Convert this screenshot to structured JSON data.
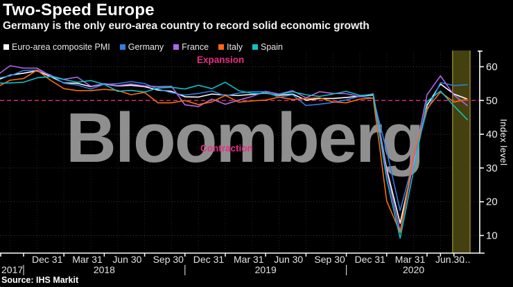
{
  "header": {
    "title": "Two-Speed Europe",
    "subtitle": "Germany is the only euro-area country to record solid economic growth"
  },
  "watermark": {
    "text": "Bloomberg"
  },
  "annotations": {
    "expansion": "Expansion",
    "contraction": "Contraction"
  },
  "footer": {
    "source": "Source: IHS Markit"
  },
  "y_axis": {
    "label": "Index level",
    "ticks": [
      60,
      50,
      40,
      30,
      20,
      10
    ]
  },
  "x_axis": {
    "quarter_ticks": [
      {
        "label": "Dec 31",
        "m": 0
      },
      {
        "label": "Mar 31",
        "m": 3
      },
      {
        "label": "Jun 30",
        "m": 6
      },
      {
        "label": "Sep 30",
        "m": 9
      },
      {
        "label": "Dec 31",
        "m": 12
      },
      {
        "label": "Mar 31",
        "m": 15
      },
      {
        "label": "Jun 30",
        "m": 18
      },
      {
        "label": "Sep 30",
        "m": 21
      },
      {
        "label": "Dec 31",
        "m": 24
      },
      {
        "label": "Mar 31",
        "m": 27
      },
      {
        "label": "Jun 30",
        "m": 30
      },
      {
        "label": "...",
        "m": 31
      },
      {
        "label": "...",
        "m": 32
      }
    ],
    "years": [
      {
        "label": "2017",
        "m": -1.6,
        "align": "left"
      },
      {
        "label": "2018",
        "m": 6,
        "align": "center"
      },
      {
        "label": "2019",
        "m": 18,
        "align": "center"
      },
      {
        "label": "2020",
        "m": 29,
        "align": "center"
      }
    ],
    "year_separators_m": [
      0,
      12,
      24
    ]
  },
  "threshold": {
    "value": 50,
    "color": "#e82c83"
  },
  "highlight_band": {
    "from_m": 31.9,
    "to_m": 33.2,
    "fill": "#44400f",
    "edge": "#8d862a"
  },
  "chart_data": {
    "type": "line",
    "title": "Two-Speed Europe",
    "subtitle": "Germany is the only euro-area country to record solid economic growth",
    "ylabel": "Index level",
    "ylim": [
      5,
      65
    ],
    "threshold": 50,
    "grid": "on",
    "legend_position": "top",
    "x": [
      "Oct 2017",
      "Nov 2017",
      "Dec 2017",
      "Jan 2018",
      "Feb 2018",
      "Mar 2018",
      "Apr 2018",
      "May 2018",
      "Jun 2018",
      "Jul 2018",
      "Aug 2018",
      "Sep 2018",
      "Oct 2018",
      "Nov 2018",
      "Dec 2018",
      "Jan 2019",
      "Feb 2019",
      "Mar 2019",
      "Apr 2019",
      "May 2019",
      "Jun 2019",
      "Jul 2019",
      "Aug 2019",
      "Sep 2019",
      "Oct 2019",
      "Nov 2019",
      "Dec 2019",
      "Jan 2020",
      "Feb 2020",
      "Mar 2020",
      "Apr 2020",
      "May 2020",
      "Jun 2020",
      "Jul 2020",
      "Aug 2020",
      "Sep 2020"
    ],
    "series": [
      {
        "name": "Euro-area composite PMI",
        "color": "#ffffff",
        "values": [
          56.0,
          57.5,
          58.1,
          58.8,
          57.1,
          55.2,
          55.1,
          54.1,
          54.9,
          54.3,
          54.5,
          54.1,
          53.1,
          52.7,
          51.1,
          51.0,
          51.9,
          51.6,
          51.5,
          51.8,
          52.2,
          51.5,
          51.9,
          50.1,
          50.6,
          50.6,
          50.9,
          51.3,
          51.6,
          29.7,
          13.6,
          31.9,
          48.5,
          54.9,
          51.9,
          50.4
        ]
      },
      {
        "name": "Germany",
        "color": "#2f80dd",
        "values": [
          56.6,
          57.3,
          58.9,
          59.0,
          57.6,
          55.1,
          54.6,
          53.4,
          54.8,
          55.0,
          55.6,
          55.0,
          53.4,
          52.3,
          51.6,
          52.1,
          52.8,
          51.4,
          52.2,
          52.6,
          52.6,
          50.9,
          51.7,
          48.5,
          48.9,
          49.4,
          50.2,
          51.2,
          50.7,
          35.0,
          17.4,
          32.3,
          47.0,
          55.3,
          54.4,
          54.7
        ]
      },
      {
        "name": "France",
        "color": "#b266e8",
        "values": [
          57.4,
          60.3,
          59.6,
          59.6,
          57.3,
          56.3,
          56.9,
          54.2,
          55.0,
          54.4,
          54.9,
          54.3,
          54.1,
          54.2,
          48.7,
          48.2,
          50.4,
          48.9,
          50.1,
          51.2,
          52.7,
          51.9,
          52.9,
          50.8,
          52.6,
          52.1,
          52.0,
          51.1,
          52.0,
          28.9,
          11.1,
          32.1,
          51.7,
          57.3,
          51.6,
          48.5
        ]
      },
      {
        "name": "Italy",
        "color": "#fd6a10",
        "values": [
          53.9,
          56.0,
          56.5,
          59.0,
          56.0,
          53.5,
          52.9,
          52.9,
          53.3,
          53.0,
          51.7,
          52.4,
          49.3,
          49.3,
          50.0,
          48.8,
          49.6,
          51.5,
          49.5,
          49.9,
          50.1,
          51.0,
          50.3,
          50.6,
          50.8,
          49.6,
          49.3,
          50.4,
          50.7,
          20.2,
          10.9,
          33.9,
          47.6,
          52.5,
          49.5,
          50.4
        ]
      },
      {
        "name": "Spain",
        "color": "#0cc2c7",
        "values": [
          55.1,
          55.2,
          55.4,
          56.7,
          57.1,
          56.2,
          55.4,
          55.9,
          54.8,
          52.7,
          53.0,
          52.5,
          53.7,
          53.9,
          53.4,
          54.5,
          53.5,
          55.4,
          52.9,
          52.1,
          52.1,
          51.7,
          52.6,
          51.7,
          51.2,
          51.9,
          52.7,
          51.5,
          51.8,
          26.7,
          9.2,
          29.2,
          49.7,
          52.8,
          48.4,
          44.3
        ]
      }
    ]
  }
}
